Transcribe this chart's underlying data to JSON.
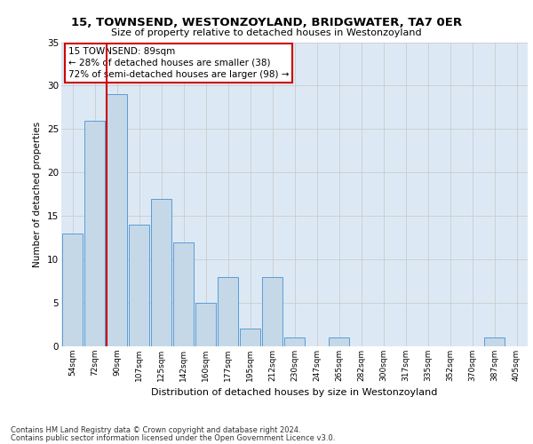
{
  "title": "15, TOWNSEND, WESTONZOYLAND, BRIDGWATER, TA7 0ER",
  "subtitle": "Size of property relative to detached houses in Westonzoyland",
  "xlabel": "Distribution of detached houses by size in Westonzoyland",
  "ylabel": "Number of detached properties",
  "categories": [
    "54sqm",
    "72sqm",
    "90sqm",
    "107sqm",
    "125sqm",
    "142sqm",
    "160sqm",
    "177sqm",
    "195sqm",
    "212sqm",
    "230sqm",
    "247sqm",
    "265sqm",
    "282sqm",
    "300sqm",
    "317sqm",
    "335sqm",
    "352sqm",
    "370sqm",
    "387sqm",
    "405sqm"
  ],
  "values": [
    13,
    26,
    29,
    14,
    17,
    12,
    5,
    8,
    2,
    8,
    1,
    0,
    1,
    0,
    0,
    0,
    0,
    0,
    0,
    1,
    0
  ],
  "bar_color": "#c5d8e8",
  "bar_edge_color": "#5b9bd5",
  "grid_color": "#cccccc",
  "background_color": "#dce9f5",
  "annotation_box_text": "15 TOWNSEND: 89sqm\n← 28% of detached houses are smaller (38)\n72% of semi-detached houses are larger (98) →",
  "annotation_box_color": "#cc0000",
  "vline_x_index": 2,
  "vline_color": "#cc0000",
  "ylim": [
    0,
    35
  ],
  "yticks": [
    0,
    5,
    10,
    15,
    20,
    25,
    30,
    35
  ],
  "footer1": "Contains HM Land Registry data © Crown copyright and database right 2024.",
  "footer2": "Contains public sector information licensed under the Open Government Licence v3.0."
}
